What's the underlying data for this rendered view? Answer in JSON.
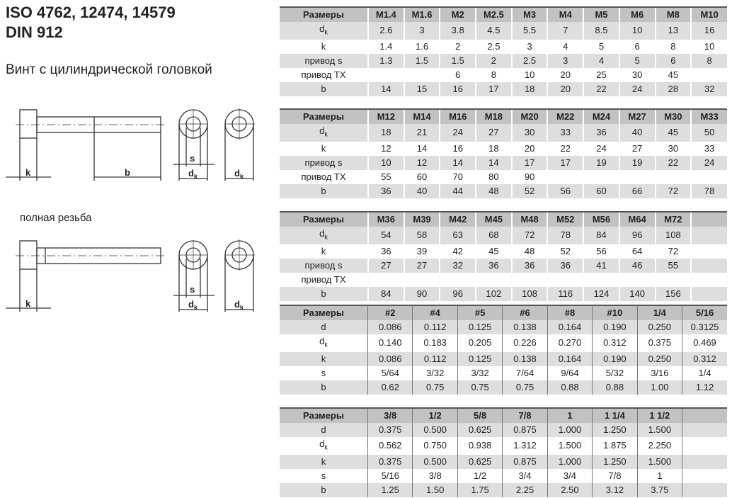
{
  "title": {
    "line1": "ISO 4762, 12474, 14579",
    "line2": "DIN 912"
  },
  "subtitle": "Винт с цилиндрической головкой",
  "full_thread_label": "полная резьба",
  "drawing_labels": {
    "k": "k",
    "b": "b",
    "s": "s",
    "dk": "d",
    "dk_sub": "k"
  },
  "tables": [
    {
      "header": [
        "Размеры",
        "M1.4",
        "M1.6",
        "M2",
        "M2.5",
        "M3",
        "M4",
        "M5",
        "M6",
        "M8",
        "M10"
      ],
      "rows": [
        {
          "label": "d",
          "sub": "k",
          "values": [
            "2.6",
            "3",
            "3.8",
            "4.5",
            "5.5",
            "7",
            "8.5",
            "10",
            "13",
            "16"
          ]
        },
        {
          "label": "k",
          "values": [
            "1.4",
            "1.6",
            "2",
            "2.5",
            "3",
            "4",
            "5",
            "6",
            "8",
            "10"
          ]
        },
        {
          "label": "привод s",
          "values": [
            "1.3",
            "1.5",
            "1.5",
            "2",
            "2.5",
            "3",
            "4",
            "5",
            "6",
            "8"
          ]
        },
        {
          "label": "привод TX",
          "values": [
            "",
            "",
            "6",
            "8",
            "10",
            "20",
            "25",
            "30",
            "45",
            ""
          ]
        },
        {
          "label": "b",
          "values": [
            "14",
            "15",
            "16",
            "17",
            "18",
            "20",
            "22",
            "24",
            "28",
            "32"
          ]
        }
      ]
    },
    {
      "header": [
        "Размеры",
        "M12",
        "M14",
        "M16",
        "M18",
        "M20",
        "M22",
        "M24",
        "M27",
        "M30",
        "M33"
      ],
      "rows": [
        {
          "label": "d",
          "sub": "k",
          "values": [
            "18",
            "21",
            "24",
            "27",
            "30",
            "33",
            "36",
            "40",
            "45",
            "50"
          ]
        },
        {
          "label": "k",
          "values": [
            "12",
            "14",
            "16",
            "18",
            "20",
            "22",
            "24",
            "27",
            "30",
            "33"
          ]
        },
        {
          "label": "привод s",
          "values": [
            "10",
            "12",
            "14",
            "14",
            "17",
            "17",
            "19",
            "19",
            "22",
            "24"
          ]
        },
        {
          "label": "привод TX",
          "values": [
            "55",
            "60",
            "70",
            "80",
            "90",
            "",
            "",
            "",
            "",
            ""
          ]
        },
        {
          "label": "b",
          "values": [
            "36",
            "40",
            "44",
            "48",
            "52",
            "56",
            "60",
            "66",
            "72",
            "78"
          ]
        }
      ]
    },
    {
      "header": [
        "Размеры",
        "M36",
        "M39",
        "M42",
        "M45",
        "M48",
        "M52",
        "M56",
        "M64",
        "M72",
        ""
      ],
      "rows": [
        {
          "label": "d",
          "sub": "k",
          "values": [
            "54",
            "58",
            "63",
            "68",
            "72",
            "78",
            "84",
            "96",
            "108",
            ""
          ]
        },
        {
          "label": "k",
          "values": [
            "36",
            "39",
            "42",
            "45",
            "48",
            "52",
            "56",
            "64",
            "72",
            ""
          ]
        },
        {
          "label": "привод s",
          "values": [
            "27",
            "27",
            "32",
            "36",
            "36",
            "36",
            "41",
            "46",
            "55",
            ""
          ]
        },
        {
          "label": "привод TX",
          "values": [
            "",
            "",
            "",
            "",
            "",
            "",
            "",
            "",
            "",
            ""
          ]
        },
        {
          "label": "b",
          "values": [
            "84",
            "90",
            "96",
            "102",
            "108",
            "116",
            "124",
            "140",
            "156",
            ""
          ]
        }
      ]
    },
    {
      "header": [
        "Размеры",
        "#2",
        "#4",
        "#5",
        "#6",
        "#8",
        "#10",
        "1/4",
        "5/16"
      ],
      "rows": [
        {
          "label": "d",
          "values": [
            "0.086",
            "0.112",
            "0.125",
            "0.138",
            "0.164",
            "0.190",
            "0.250",
            "0.3125"
          ]
        },
        {
          "label": "d",
          "sub": "k",
          "values": [
            "0.140",
            "0.183",
            "0.205",
            "0.226",
            "0.270",
            "0.312",
            "0.375",
            "0.469"
          ]
        },
        {
          "label": "k",
          "values": [
            "0.086",
            "0.112",
            "0.125",
            "0.138",
            "0.164",
            "0.190",
            "0.250",
            "0.312"
          ]
        },
        {
          "label": "s",
          "values": [
            "5/64",
            "3/32",
            "3/32",
            "7/64",
            "9/64",
            "5/32",
            "3/16",
            "1/4"
          ]
        },
        {
          "label": "b",
          "values": [
            "0.62",
            "0.75",
            "0.75",
            "0.75",
            "0.88",
            "0.88",
            "1.00",
            "1.12"
          ]
        }
      ]
    },
    {
      "header": [
        "Размеры",
        "3/8",
        "1/2",
        "5/8",
        "7/8",
        "1",
        "1 1/4",
        "1 1/2",
        ""
      ],
      "rows": [
        {
          "label": "d",
          "values": [
            "0.375",
            "0.500",
            "0.625",
            "0.875",
            "1.000",
            "1.250",
            "1.500",
            ""
          ]
        },
        {
          "label": "d",
          "sub": "k",
          "values": [
            "0.562",
            "0.750",
            "0.938",
            "1.312",
            "1.500",
            "1.875",
            "2.250",
            ""
          ]
        },
        {
          "label": "k",
          "values": [
            "0.375",
            "0.500",
            "0.625",
            "0.875",
            "1.000",
            "1.250",
            "1.500",
            ""
          ]
        },
        {
          "label": "s",
          "values": [
            "5/16",
            "3/8",
            "1/2",
            "3/4",
            "3/4",
            "7/8",
            "1",
            ""
          ]
        },
        {
          "label": "b",
          "values": [
            "1.25",
            "1.50",
            "1.75",
            "2.25",
            "2.50",
            "3.12",
            "3.75",
            ""
          ]
        }
      ]
    }
  ]
}
